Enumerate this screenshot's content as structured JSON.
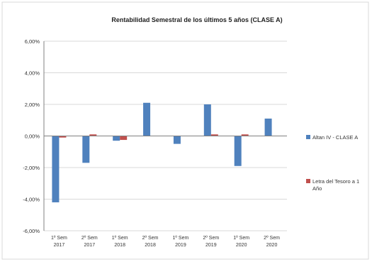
{
  "chart_data": {
    "type": "bar",
    "title": "Rentabilidad Semestral de los últimos 5 años (CLASE A)",
    "xlabel": "",
    "ylabel": "",
    "categories": [
      [
        "1º Sem",
        "2017"
      ],
      [
        "2º Sem",
        "2017"
      ],
      [
        "1º Sem",
        "2018"
      ],
      [
        "2º Sem",
        "2018"
      ],
      [
        "1º Sem",
        "2019"
      ],
      [
        "2º Sem",
        "2019"
      ],
      [
        "1º Sem",
        "2020"
      ],
      [
        "2º Sem",
        "2020"
      ]
    ],
    "series": [
      {
        "name": "Altan IV - CLASE A",
        "color": "#4f81bd",
        "values": [
          -4.2,
          -1.7,
          -0.3,
          2.1,
          -0.5,
          2.0,
          -1.9,
          1.1
        ]
      },
      {
        "name": "Letra del Tesoro a 1 Año",
        "color": "#c0504d",
        "values": [
          -0.1,
          0.1,
          -0.25,
          0.0,
          0.0,
          0.1,
          0.1,
          0.0
        ]
      }
    ],
    "ylim": [
      -6,
      6
    ],
    "yticks": [
      6,
      4,
      2,
      0,
      -2,
      -4,
      -6
    ],
    "ytick_labels": [
      "6,00%",
      "4,00%",
      "2,00%",
      "0,00%",
      "-2,00%",
      "-4,00%",
      "-6,00%"
    ],
    "grid": true,
    "legend_position": "right"
  }
}
